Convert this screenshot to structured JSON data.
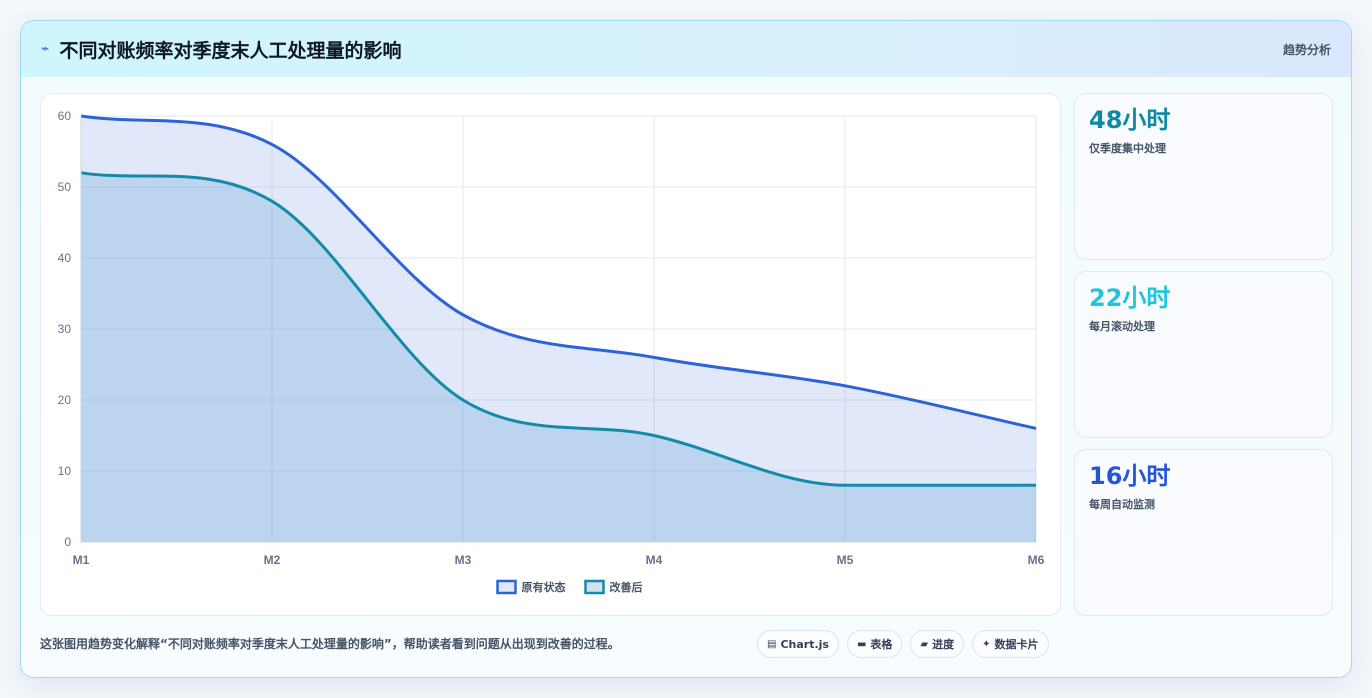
{
  "header": {
    "title": "不同对账频率对季度末人工处理量的影响",
    "title_icon": "⌁",
    "tag": "趋势分析"
  },
  "chart_data": {
    "type": "area",
    "title": "",
    "xlabel": "",
    "ylabel": "",
    "categories": [
      "M1",
      "M2",
      "M3",
      "M4",
      "M5",
      "M6"
    ],
    "ylim": [
      0,
      60
    ],
    "yticks": [
      0,
      10,
      20,
      30,
      40,
      50,
      60
    ],
    "grid": true,
    "legend_placement": "bottom-center",
    "series": [
      {
        "name": "原有状态",
        "values": [
          60,
          56,
          32,
          26,
          22,
          16
        ],
        "color": "#2d63d8",
        "fill": "rgba(90,130,230,0.18)"
      },
      {
        "name": "改善后",
        "values": [
          52,
          48,
          20,
          15,
          8,
          8
        ],
        "color": "#138aaa",
        "fill": "rgba(120,175,215,0.35)"
      }
    ]
  },
  "stats": [
    {
      "value": "48小时",
      "label": "仅季度集中处理",
      "color": "#0e8aa6"
    },
    {
      "value": "22小时",
      "label": "每月滚动处理",
      "color": "#22c3dc"
    },
    {
      "value": "16小时",
      "label": "每周自动监测",
      "color": "#2455d6"
    }
  ],
  "footer": {
    "caption": "这张图用趋势变化解释“不同对账频率对季度末人工处理量的影响”，帮助读者看到问题从出现到改善的过程。",
    "chips": [
      {
        "icon": "▤",
        "icon_name": "chart-icon",
        "label": "Chart.js"
      },
      {
        "icon": "▬",
        "icon_name": "table-icon",
        "label": "表格"
      },
      {
        "icon": "▰",
        "icon_name": "progress-icon",
        "label": "进度"
      },
      {
        "icon": "✦",
        "icon_name": "sparkle-icon",
        "label": "数据卡片"
      }
    ]
  }
}
